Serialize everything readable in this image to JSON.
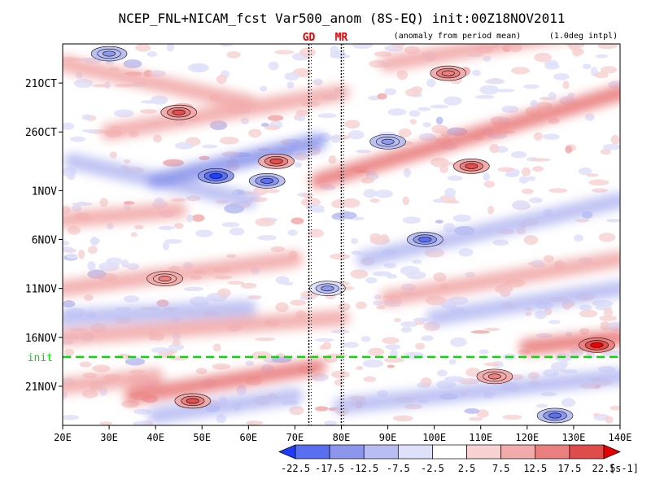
{
  "chart_data": {
    "type": "heatmap",
    "title": "NCEP_FNL+NICAM_fcst Var500_anom (8S-EQ) init:00Z18NOV2011",
    "subtitle_left": "(anomaly from period mean)",
    "subtitle_right": "(1.0deg intpl)",
    "x_axis": {
      "unit": "degrees east longitude",
      "range": [
        20,
        140
      ],
      "ticks": [
        20,
        30,
        40,
        50,
        60,
        70,
        80,
        90,
        100,
        110,
        120,
        130,
        140
      ],
      "tick_labels": [
        "20E",
        "30E",
        "40E",
        "50E",
        "60E",
        "70E",
        "80E",
        "90E",
        "100E",
        "110E",
        "120E",
        "130E",
        "140E"
      ]
    },
    "y_axis": {
      "unit": "day since 17OCT2011",
      "range": [
        0,
        39
      ],
      "ticks": [
        4,
        9,
        15,
        20,
        25,
        30,
        35
      ],
      "tick_labels": [
        "21OCT",
        "26OCT",
        "1NOV",
        "6NOV",
        "11NOV",
        "16NOV",
        "21NOV"
      ]
    },
    "markers": [
      {
        "label": "GD",
        "lon": 73,
        "style": "dotted"
      },
      {
        "label": "MR",
        "lon": 80,
        "style": "dotted"
      }
    ],
    "init_line": {
      "label": "init",
      "day": 32,
      "color": "#00e000"
    },
    "colorbar": {
      "levels": [
        -22.5,
        -17.5,
        -12.5,
        -7.5,
        -2.5,
        2.5,
        7.5,
        12.5,
        17.5,
        22.5
      ],
      "level_labels": [
        "-22.5",
        "-17.5",
        "-12.5",
        "-7.5",
        "-2.5",
        "2.5",
        "7.5",
        "12.5",
        "17.5",
        "22.5"
      ],
      "colors": [
        "#1e3cff",
        "#5a6ef0",
        "#8c96ec",
        "#b8bdf2",
        "#dfe1fa",
        "#ffffff",
        "#f7d3d3",
        "#f2aaaa",
        "#ea7f7f",
        "#e04c4c",
        "#e60000"
      ],
      "unit": "[s-1]"
    },
    "anomaly_bands": [
      {
        "lon0": 20,
        "day0": 2,
        "lon1": 60,
        "day1": 6,
        "value": 10
      },
      {
        "lon0": 90,
        "day0": 2,
        "lon1": 140,
        "day1": -2,
        "value": 12
      },
      {
        "lon0": 30,
        "day0": 9,
        "lon1": 80,
        "day1": 5,
        "value": 11
      },
      {
        "lon0": 75,
        "day0": 14,
        "lon1": 140,
        "day1": 5,
        "value": 13
      },
      {
        "lon0": 22,
        "day0": 12,
        "lon1": 60,
        "day1": 16,
        "value": -12
      },
      {
        "lon0": 40,
        "day0": 14,
        "lon1": 75,
        "day1": 10,
        "value": -16
      },
      {
        "lon0": 20,
        "day0": 18,
        "lon1": 45,
        "day1": 17,
        "value": 9
      },
      {
        "lon0": 85,
        "day0": 22,
        "lon1": 140,
        "day1": 16,
        "value": -11
      },
      {
        "lon0": 20,
        "day0": 25,
        "lon1": 70,
        "day1": 22,
        "value": 11
      },
      {
        "lon0": 90,
        "day0": 26,
        "lon1": 140,
        "day1": 22,
        "value": 10
      },
      {
        "lon0": 20,
        "day0": 28,
        "lon1": 60,
        "day1": 27,
        "value": -10
      },
      {
        "lon0": 100,
        "day0": 28,
        "lon1": 140,
        "day1": 25,
        "value": -12
      },
      {
        "lon0": 20,
        "day0": 30,
        "lon1": 80,
        "day1": 28,
        "value": 8
      },
      {
        "lon0": 120,
        "day0": 31,
        "lon1": 140,
        "day1": 30,
        "value": 14
      },
      {
        "lon0": 35,
        "day0": 36,
        "lon1": 75,
        "day1": 33,
        "value": 13
      },
      {
        "lon0": 20,
        "day0": 35,
        "lon1": 40,
        "day1": 34,
        "value": 9
      },
      {
        "lon0": 80,
        "day0": 37,
        "lon1": 140,
        "day1": 34,
        "value": -9
      },
      {
        "lon0": 40,
        "day0": 38,
        "lon1": 70,
        "day1": 36,
        "value": -8
      }
    ],
    "anomaly_spots": [
      {
        "lon": 53,
        "day": 13.5,
        "value": -24
      },
      {
        "lon": 64,
        "day": 14,
        "value": -20
      },
      {
        "lon": 45,
        "day": 7,
        "value": 20
      },
      {
        "lon": 66,
        "day": 12,
        "value": 19
      },
      {
        "lon": 108,
        "day": 12.5,
        "value": 18
      },
      {
        "lon": 135,
        "day": 30.8,
        "value": 25
      },
      {
        "lon": 48,
        "day": 36.5,
        "value": 20
      },
      {
        "lon": 103,
        "day": 3,
        "value": 17
      },
      {
        "lon": 98,
        "day": 20,
        "value": -18
      },
      {
        "lon": 30,
        "day": 1,
        "value": -15
      },
      {
        "lon": 90,
        "day": 10,
        "value": -14
      },
      {
        "lon": 126,
        "day": 38,
        "value": -19
      },
      {
        "lon": 42,
        "day": 24,
        "value": 16
      },
      {
        "lon": 77,
        "day": 25,
        "value": -13
      },
      {
        "lon": 113,
        "day": 34,
        "value": 14
      }
    ]
  }
}
